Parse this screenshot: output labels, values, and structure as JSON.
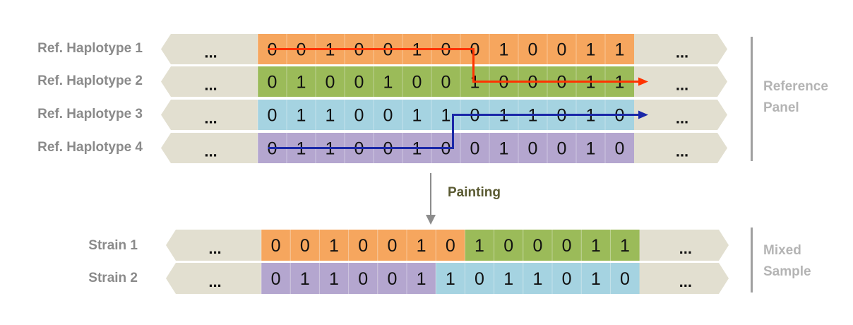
{
  "rows": [
    {
      "label": "Ref. Haplotype 1",
      "bits": [
        "0",
        "0",
        "1",
        "0",
        "0",
        "1",
        "0",
        "0",
        "1",
        "0",
        "0",
        "1",
        "1"
      ],
      "color": "#f6a65e"
    },
    {
      "label": "Ref. Haplotype 2",
      "bits": [
        "0",
        "1",
        "0",
        "0",
        "1",
        "0",
        "0",
        "1",
        "0",
        "0",
        "0",
        "1",
        "1"
      ],
      "color": "#9bbb59"
    },
    {
      "label": "Ref. Haplotype 3",
      "bits": [
        "0",
        "1",
        "1",
        "0",
        "0",
        "1",
        "1",
        "0",
        "1",
        "1",
        "0",
        "1",
        "0"
      ],
      "color": "#a5d3e1"
    },
    {
      "label": "Ref. Haplotype 4",
      "bits": [
        "0",
        "1",
        "1",
        "0",
        "0",
        "1",
        "0",
        "0",
        "1",
        "0",
        "0",
        "1",
        "0"
      ],
      "color": "#b4a6cf"
    }
  ],
  "strains": [
    {
      "label": "Strain 1",
      "bits": [
        "0",
        "0",
        "1",
        "0",
        "0",
        "1",
        "0",
        "1",
        "0",
        "0",
        "0",
        "1",
        "1"
      ],
      "colors": [
        "#f6a65e",
        "#f6a65e",
        "#f6a65e",
        "#f6a65e",
        "#f6a65e",
        "#f6a65e",
        "#f6a65e",
        "#9bbb59",
        "#9bbb59",
        "#9bbb59",
        "#9bbb59",
        "#9bbb59",
        "#9bbb59"
      ]
    },
    {
      "label": "Strain 2",
      "bits": [
        "0",
        "1",
        "1",
        "0",
        "0",
        "1",
        "1",
        "0",
        "1",
        "1",
        "0",
        "1",
        "0"
      ],
      "colors": [
        "#b4a6cf",
        "#b4a6cf",
        "#b4a6cf",
        "#b4a6cf",
        "#b4a6cf",
        "#b4a6cf",
        "#a5d3e1",
        "#a5d3e1",
        "#a5d3e1",
        "#a5d3e1",
        "#a5d3e1",
        "#a5d3e1",
        "#a5d3e1"
      ]
    }
  ],
  "ellipsis": "...",
  "painting_label": "Painting",
  "reference_panel": {
    "line1": "Reference",
    "line2": "Panel"
  },
  "mixed_sample": {
    "line1": "Mixed",
    "line2": "Sample"
  },
  "colors": {
    "flank": "#e2dfd0",
    "path_red": "#ff3300",
    "path_blue": "#1a27a8"
  }
}
